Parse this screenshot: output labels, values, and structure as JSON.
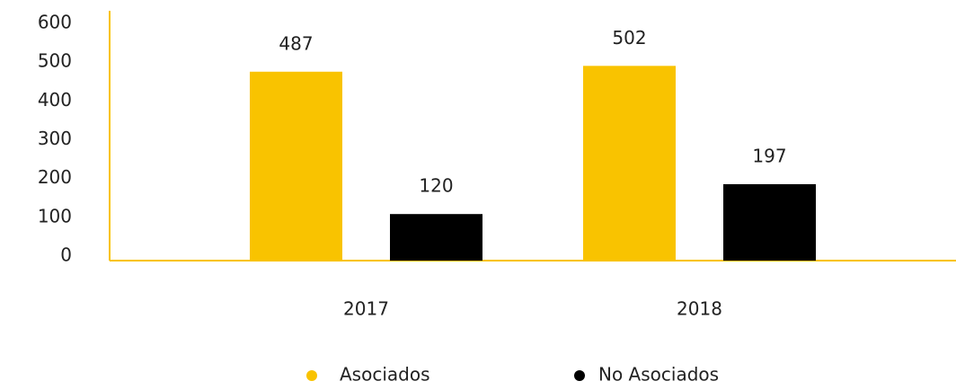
{
  "chart_data": {
    "type": "bar",
    "categories": [
      "2017",
      "2018"
    ],
    "series": [
      {
        "name": "Asociados",
        "color": "#f9c300",
        "values": [
          487,
          502
        ]
      },
      {
        "name": "No Asociados",
        "color": "#000000",
        "values": [
          120,
          197
        ]
      }
    ],
    "ylim": [
      0,
      600
    ],
    "yticks": [
      0,
      100,
      200,
      300,
      400,
      500,
      600
    ],
    "grid": false,
    "legend": "bottom",
    "axis_color": "#f9c300"
  }
}
